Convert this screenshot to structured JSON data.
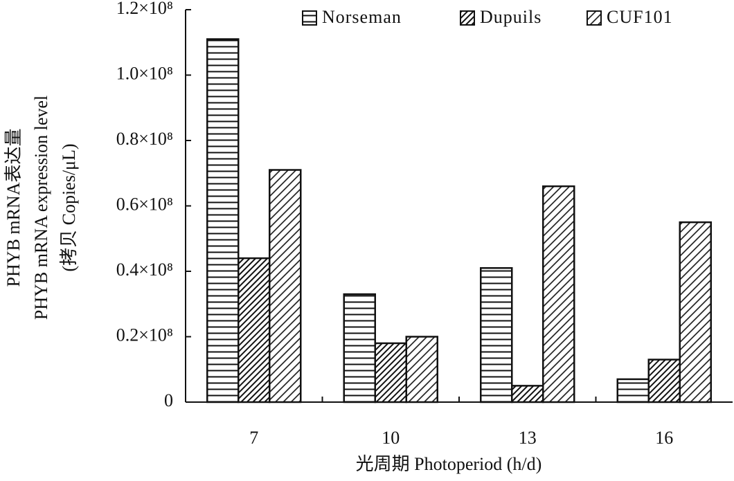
{
  "chart_data": {
    "type": "bar",
    "xlabel": "光周期 Photoperiod (h/d)",
    "ylabel": [
      "PHYB mRNA表达量",
      "PHYB mRNA expression level",
      "(拷贝 Copies/μL)"
    ],
    "categories": [
      "7",
      "10",
      "13",
      "16"
    ],
    "series": [
      {
        "name": "Norseman",
        "color": "#111111",
        "hatch": "horizontal",
        "values": [
          111000000,
          33000000,
          41000000,
          7000000
        ]
      },
      {
        "name": "Dupuils",
        "color": "#111111",
        "hatch": "diagonal-dense",
        "values": [
          44000000,
          18000000,
          5000000,
          13000000
        ]
      },
      {
        "name": "CUF101",
        "color": "#111111",
        "hatch": "diagonal",
        "values": [
          71000000,
          20000000,
          66000000,
          55000000
        ]
      }
    ],
    "ylim": [
      0,
      120000000
    ],
    "yticks": [
      0,
      {
        "value": 20000000,
        "label": "0.2×10⁸"
      },
      {
        "value": 40000000,
        "label": "0.4×10⁸"
      },
      {
        "value": 60000000,
        "label": "0.6×10⁸"
      },
      {
        "value": 80000000,
        "label": "0.8×10⁸"
      },
      {
        "value": 100000000,
        "label": "1.0×10⁸"
      },
      {
        "value": 120000000,
        "label": "1.2×10⁸"
      }
    ],
    "legend": "top-right"
  }
}
